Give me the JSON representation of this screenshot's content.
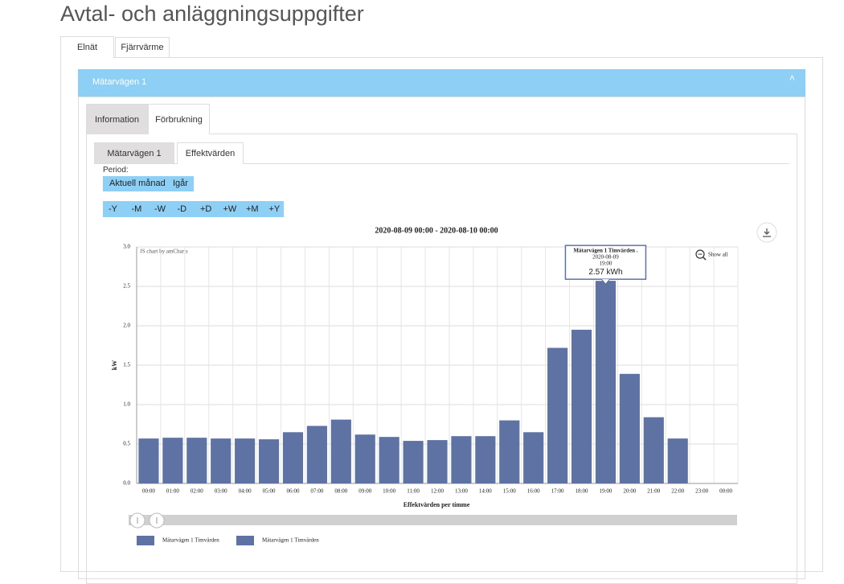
{
  "header": {
    "title": "Avtal- och anläggningsuppgifter"
  },
  "tabs": [
    "Elnät",
    "Fjärrvärme"
  ],
  "panel": {
    "title": "Mätarvägen 1"
  },
  "inner_tabs": [
    "Information",
    "Förbrukning"
  ],
  "sub_tabs": [
    "Mätarvägen 1",
    "Effektvärden"
  ],
  "period": {
    "label": "Period:",
    "buttons": [
      "Aktuell månad",
      "Igår"
    ],
    "nav": [
      "-Y",
      "-M",
      "-W",
      "-D",
      "+D",
      "+W",
      "+M",
      "+Y"
    ]
  },
  "chart_data": {
    "type": "bar",
    "title": "2020-08-09 00:00 - 2020-08-10 00:00",
    "credit": "JS chart by amCharts",
    "zoom_label": "Show all",
    "y_label": "kW",
    "x_label": "Effektvärden per timme",
    "categories": [
      "00:00",
      "01:00",
      "02:00",
      "03:00",
      "04:00",
      "05:00",
      "06:00",
      "07:00",
      "08:00",
      "09:00",
      "10:00",
      "11:00",
      "12:00",
      "13:00",
      "14:00",
      "15:00",
      "16:00",
      "17:00",
      "18:00",
      "19:00",
      "20:00",
      "21:00",
      "22:00",
      "23:00",
      "00:00"
    ],
    "values": [
      0.57,
      0.58,
      0.58,
      0.57,
      0.57,
      0.56,
      0.65,
      0.73,
      0.81,
      0.62,
      0.59,
      0.54,
      0.55,
      0.6,
      0.6,
      0.8,
      0.65,
      1.72,
      1.95,
      2.57,
      1.39,
      0.84,
      0.57,
      null,
      null
    ],
    "color": "#5e72a3",
    "ylim": [
      0,
      3
    ],
    "yticks": [
      {
        "value": 0,
        "label": "0.0"
      },
      {
        "value": 0.5,
        "label": "0.5"
      },
      {
        "value": 1,
        "label": "1.0"
      },
      {
        "value": 1.5,
        "label": "1.5"
      },
      {
        "value": 2,
        "label": "2.0"
      },
      {
        "value": 2.5,
        "label": "2.5"
      },
      {
        "value": 3,
        "label": "3.0"
      }
    ],
    "grid": true,
    "tooltip": {
      "index": 19,
      "series": "Mätarvägen 1 Timvärden .",
      "date": "2020-08-09",
      "time": "19:00",
      "value_label": "2.57 kWh"
    },
    "legend": [
      "Mätarvägen 1  Timvärden",
      "Mätarvägen 1  Timvärden"
    ]
  }
}
